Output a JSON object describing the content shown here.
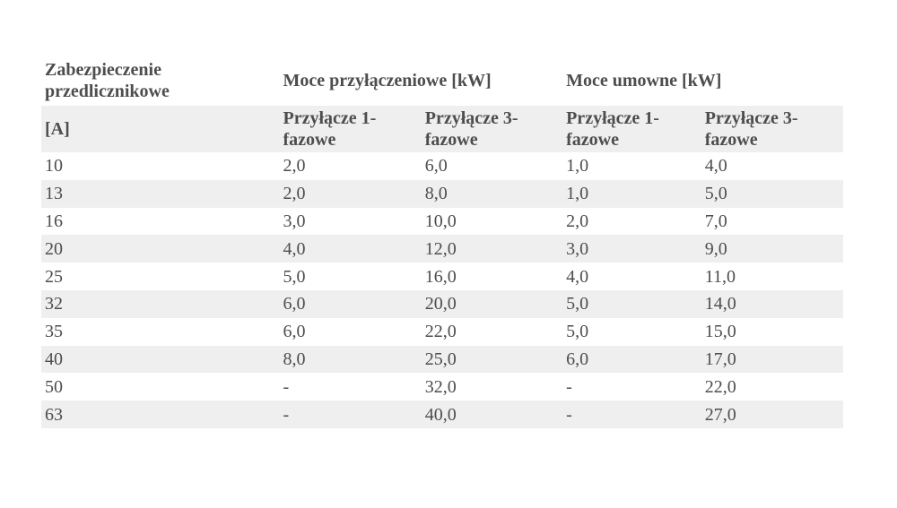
{
  "page": {
    "background_color": "#ffffff"
  },
  "table": {
    "colors": {
      "stripe": "#efefef",
      "row_plain": "#ffffff",
      "text": "#4d4d4d"
    },
    "header": {
      "fuse_title": "Zabezpieczenie przedlicznikowe",
      "fuse_unit": "[A]",
      "connection_group": "Moce przyłączeniowe [kW]",
      "contracted_group": "Moce umowne [kW]",
      "connection_1ph": "Przyłącze 1-fazowe",
      "connection_3ph": "Przyłącze 3-fazowe",
      "contracted_1ph": "Przyłącze 1-fazowe",
      "contracted_3ph": "Przyłącze 3-fazowe"
    },
    "rows": [
      {
        "fuse": "10",
        "conn1": "2,0",
        "conn3": "6,0",
        "contr1": "1,0",
        "contr3": "4,0"
      },
      {
        "fuse": "13",
        "conn1": "2,0",
        "conn3": "8,0",
        "contr1": "1,0",
        "contr3": "5,0"
      },
      {
        "fuse": "16",
        "conn1": "3,0",
        "conn3": "10,0",
        "contr1": "2,0",
        "contr3": "7,0"
      },
      {
        "fuse": "20",
        "conn1": "4,0",
        "conn3": "12,0",
        "contr1": "3,0",
        "contr3": "9,0"
      },
      {
        "fuse": "25",
        "conn1": "5,0",
        "conn3": "16,0",
        "contr1": "4,0",
        "contr3": "11,0"
      },
      {
        "fuse": "32",
        "conn1": "6,0",
        "conn3": "20,0",
        "contr1": "5,0",
        "contr3": "14,0"
      },
      {
        "fuse": "35",
        "conn1": "6,0",
        "conn3": "22,0",
        "contr1": "5,0",
        "contr3": "15,0"
      },
      {
        "fuse": "40",
        "conn1": "8,0",
        "conn3": "25,0",
        "contr1": "6,0",
        "contr3": "17,0"
      },
      {
        "fuse": "50",
        "conn1": "-",
        "conn3": "32,0",
        "contr1": "-",
        "contr3": "22,0"
      },
      {
        "fuse": "63",
        "conn1": "-",
        "conn3": "40,0",
        "contr1": "-",
        "contr3": "27,0"
      }
    ]
  }
}
